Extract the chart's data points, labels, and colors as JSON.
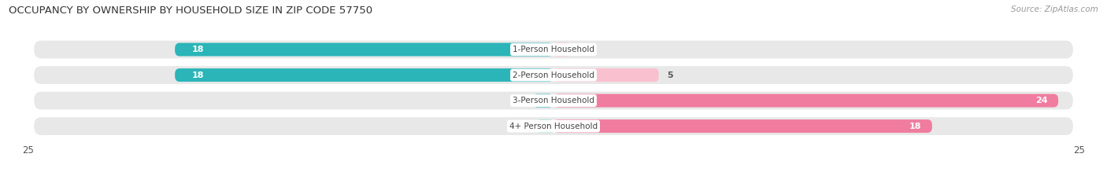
{
  "title": "OCCUPANCY BY OWNERSHIP BY HOUSEHOLD SIZE IN ZIP CODE 57750",
  "source": "Source: ZipAtlas.com",
  "categories": [
    "1-Person Household",
    "2-Person Household",
    "3-Person Household",
    "4+ Person Household"
  ],
  "owner_values": [
    18,
    18,
    1,
    0
  ],
  "renter_values": [
    0,
    5,
    24,
    18
  ],
  "owner_color": "#2bb5b8",
  "renter_color": "#f07ca0",
  "owner_light_color": "#8fd5d8",
  "renter_light_color": "#f9c0d0",
  "row_bg_color": "#e8e8e8",
  "xlim": 25,
  "background_color": "#ffffff",
  "title_fontsize": 9.5,
  "source_fontsize": 7.5,
  "label_fontsize": 8,
  "cat_fontsize": 7.5,
  "tick_fontsize": 8.5
}
